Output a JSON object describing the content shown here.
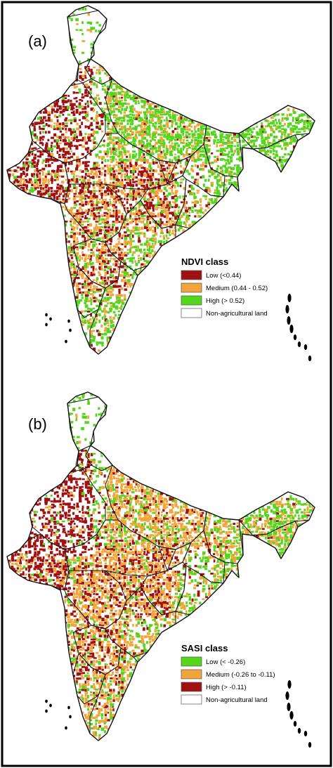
{
  "panels": [
    {
      "label": "(a)",
      "legend": {
        "title": "NDVI class",
        "items": [
          {
            "label": "Low (<0.44)",
            "color": "#a01212"
          },
          {
            "label": "Medium (0.44 - 0.52)",
            "color": "#f2a53b"
          },
          {
            "label": "High (> 0.52)",
            "color": "#55d61c"
          },
          {
            "label": "Non-agricultural land",
            "color": "#ffffff"
          }
        ]
      }
    },
    {
      "label": "(b)",
      "legend": {
        "title": "SASI class",
        "items": [
          {
            "label": "Low (< -0.26)",
            "color": "#55d61c"
          },
          {
            "label": "Medium (-0.26 to -0.11)",
            "color": "#f2a53b"
          },
          {
            "label": "High (> -0.11)",
            "color": "#a01212"
          },
          {
            "label": "Non-agricultural land",
            "color": "#ffffff"
          }
        ]
      }
    }
  ]
}
